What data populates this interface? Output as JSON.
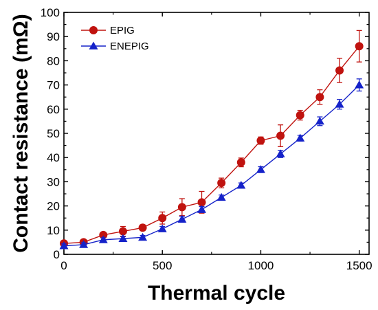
{
  "chart_data": {
    "type": "line",
    "xlabel": "Thermal cycle",
    "ylabel": "Contact resistance (mΩ)",
    "xlim": [
      0,
      1550
    ],
    "ylim": [
      0,
      100
    ],
    "xticks": [
      0,
      500,
      1000,
      1500
    ],
    "yticks": [
      0,
      10,
      20,
      30,
      40,
      50,
      60,
      70,
      80,
      90,
      100
    ],
    "grid": false,
    "legend_position": "top-left",
    "series": [
      {
        "name": "EPIG",
        "color": "#c0130f",
        "marker": "circle",
        "x": [
          0,
          100,
          200,
          300,
          400,
          500,
          600,
          700,
          800,
          900,
          1000,
          1100,
          1200,
          1300,
          1400,
          1500
        ],
        "y": [
          4.5,
          5,
          8,
          9.5,
          11,
          15,
          19.5,
          21.5,
          29.5,
          38,
          47,
          49,
          57.5,
          65,
          76,
          86
        ],
        "err": [
          1,
          0.8,
          1,
          2,
          1.2,
          2.5,
          3.5,
          4.5,
          2,
          1.8,
          1.5,
          4.5,
          2,
          3,
          5,
          6.5
        ]
      },
      {
        "name": "ENEPIG",
        "color": "#1522c9",
        "marker": "triangle",
        "x": [
          0,
          100,
          200,
          300,
          400,
          500,
          600,
          700,
          800,
          900,
          1000,
          1100,
          1200,
          1300,
          1400,
          1500
        ],
        "y": [
          3.5,
          4,
          6,
          6.5,
          7,
          10.5,
          14.5,
          18.5,
          23.5,
          28.5,
          35,
          41.5,
          48,
          55,
          62,
          70
        ],
        "err": [
          0.8,
          0.8,
          0.8,
          0.8,
          0.8,
          1,
          1.2,
          1.2,
          1,
          1,
          1.2,
          1.5,
          1.2,
          1.8,
          2,
          2.5
        ]
      }
    ]
  }
}
